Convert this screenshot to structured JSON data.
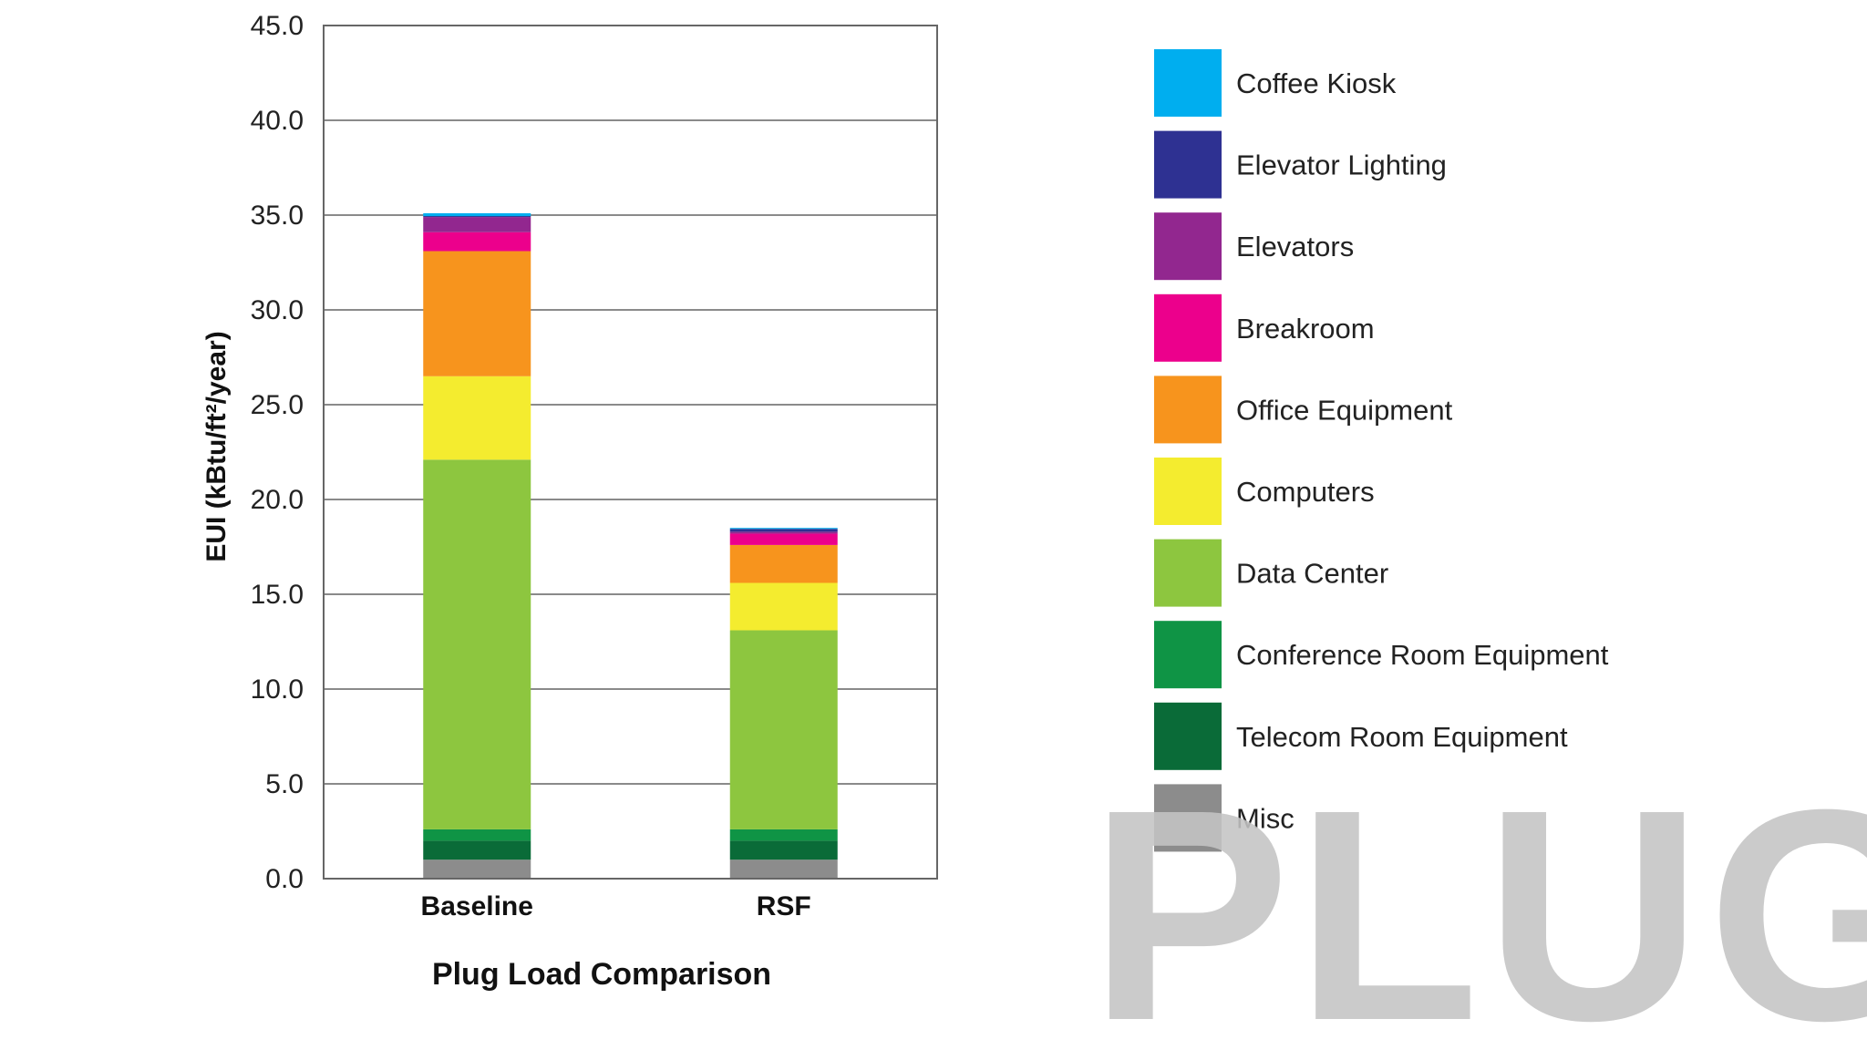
{
  "chart_data": {
    "type": "bar",
    "stacked": true,
    "title": "Plug Load Comparison",
    "ylabel": "EUI (kBtu/ft²/year)",
    "xlabel": "",
    "categories": [
      "Baseline",
      "RSF"
    ],
    "ylim": [
      0,
      45
    ],
    "yticks": [
      "0.0",
      "5.0",
      "10.0",
      "15.0",
      "20.0",
      "25.0",
      "30.0",
      "35.0",
      "40.0",
      "45.0"
    ],
    "grid": true,
    "legend_position": "right",
    "series": [
      {
        "name": "Misc",
        "color": "#8c8c8c",
        "values": [
          1.0,
          1.0
        ]
      },
      {
        "name": "Telecom Room Equipment",
        "color": "#0a6b38",
        "values": [
          1.0,
          1.0
        ]
      },
      {
        "name": "Conference Room Equipment",
        "color": "#0f9445",
        "values": [
          0.6,
          0.6
        ]
      },
      {
        "name": "Data Center",
        "color": "#8dc63f",
        "values": [
          19.5,
          10.5
        ]
      },
      {
        "name": "Computers",
        "color": "#f4ec2f",
        "values": [
          4.4,
          2.5
        ]
      },
      {
        "name": "Office Equipment",
        "color": "#f7941d",
        "values": [
          6.6,
          2.0
        ]
      },
      {
        "name": "Breakroom",
        "color": "#ec008c",
        "values": [
          1.0,
          0.6
        ]
      },
      {
        "name": "Elevators",
        "color": "#92278f",
        "values": [
          0.8,
          0.1
        ]
      },
      {
        "name": "Elevator Lighting",
        "color": "#2e3192",
        "values": [
          0.05,
          0.15
        ]
      },
      {
        "name": "Coffee Kiosk",
        "color": "#00aeef",
        "values": [
          0.15,
          0.05
        ]
      }
    ]
  },
  "legend_order": [
    "Coffee Kiosk",
    "Elevator Lighting",
    "Elevators",
    "Breakroom",
    "Office Equipment",
    "Computers",
    "Data Center",
    "Conference Room Equipment",
    "Telecom Room Equipment",
    "Misc"
  ],
  "overlay_text": "PLUG"
}
